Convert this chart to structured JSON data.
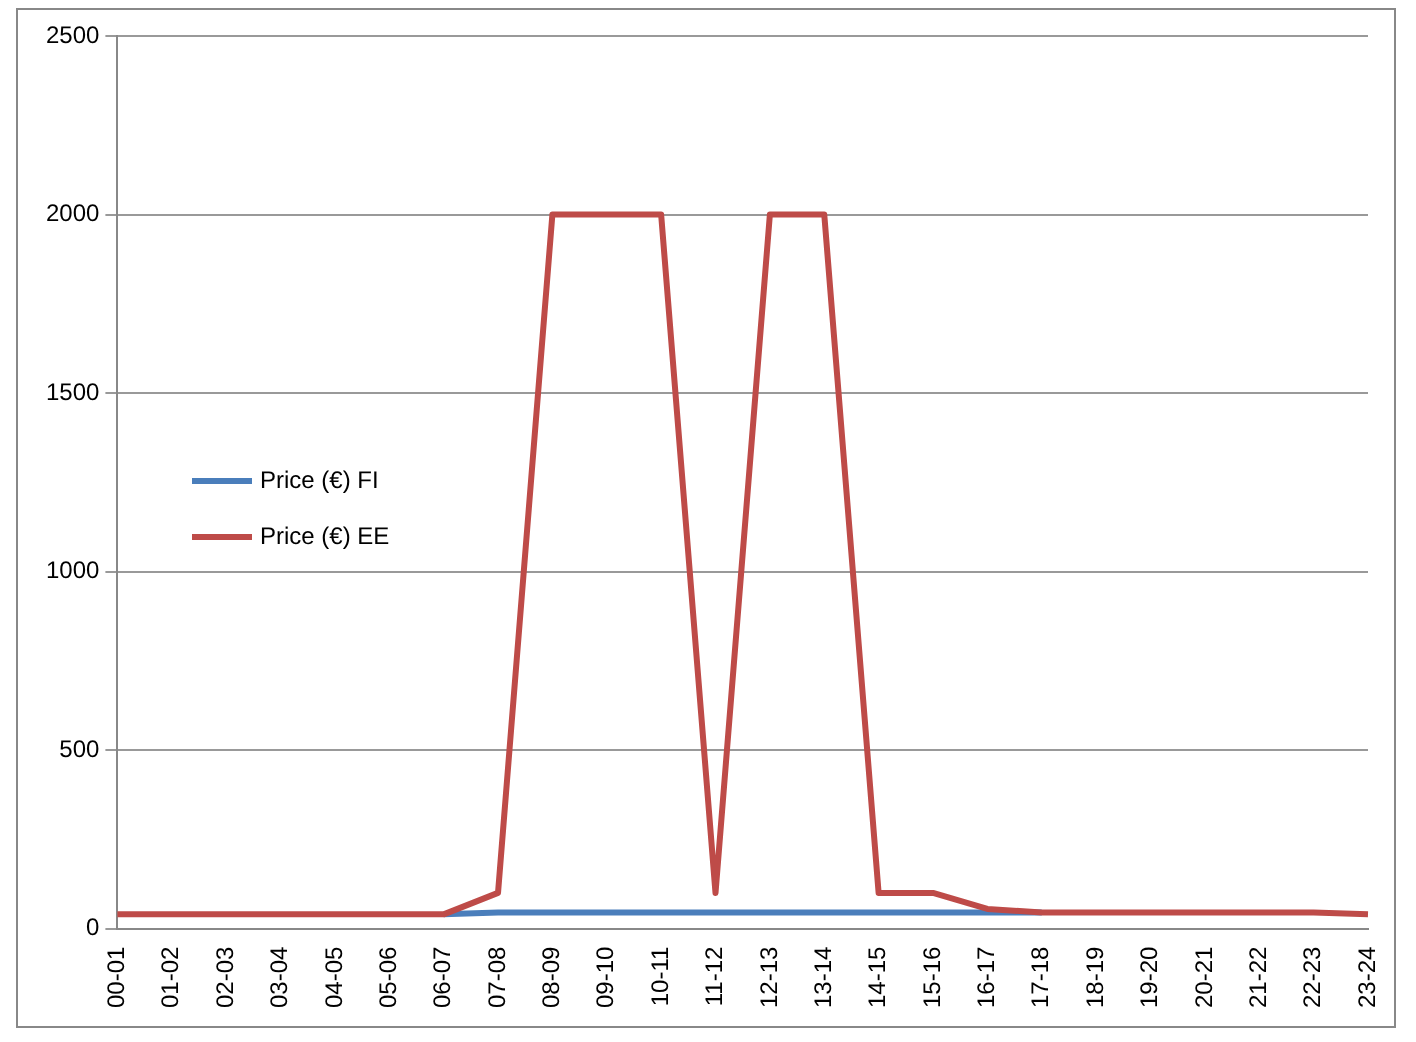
{
  "chart_data": {
    "type": "line",
    "categories": [
      "00-01",
      "01-02",
      "02-03",
      "03-04",
      "04-05",
      "05-06",
      "06-07",
      "07-08",
      "08-09",
      "09-10",
      "10-11",
      "11-12",
      "12-13",
      "13-14",
      "14-15",
      "15-16",
      "16-17",
      "17-18",
      "18-19",
      "19-20",
      "20-21",
      "21-22",
      "22-23",
      "23-24"
    ],
    "series": [
      {
        "name": "Price (€) FI",
        "color": "#4a7ebb",
        "values": [
          null,
          null,
          null,
          null,
          null,
          null,
          40,
          45,
          45,
          45,
          45,
          45,
          45,
          45,
          45,
          45,
          45,
          45,
          null,
          null,
          null,
          null,
          null,
          null
        ]
      },
      {
        "name": "Price (€) EE",
        "color": "#be4b48",
        "values": [
          40,
          40,
          40,
          40,
          40,
          40,
          40,
          100,
          2000,
          2000,
          2000,
          100,
          2000,
          2000,
          100,
          100,
          55,
          45,
          45,
          45,
          45,
          45,
          45,
          40
        ]
      }
    ],
    "ylim": [
      0,
      2500
    ],
    "yticks": [
      0,
      500,
      1000,
      1500,
      2000,
      2500
    ],
    "grid": "y",
    "legend": "left",
    "marker": "none",
    "line_style": "solid"
  }
}
